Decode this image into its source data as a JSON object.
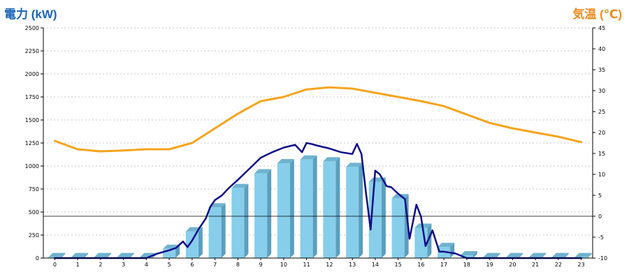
{
  "chart_data": {
    "type": "bar",
    "title": "",
    "y_left": {
      "label": "電力 (kW)",
      "ticks": [
        "0",
        "250",
        "500",
        "750",
        "1000",
        "1250",
        "1500",
        "1750",
        "2000",
        "2250",
        "2500"
      ],
      "range": [
        0,
        2500
      ]
    },
    "y_right": {
      "label": "気温 (℃)",
      "ticks": [
        "-10",
        "-5",
        "0",
        "5",
        "10",
        "15",
        "20",
        "25",
        "30",
        "35",
        "40",
        "45"
      ],
      "range": [
        -10,
        45
      ]
    },
    "categories": [
      "0",
      "1",
      "2",
      "3",
      "4",
      "5",
      "6",
      "7",
      "8",
      "9",
      "10",
      "11",
      "12",
      "13",
      "14",
      "15",
      "16",
      "17",
      "18",
      "19",
      "20",
      "21",
      "22",
      "23"
    ],
    "series": [
      {
        "name": "",
        "kind": "bar",
        "axis": "left",
        "color": "#87ceeb",
        "values": [
          10,
          10,
          10,
          10,
          10,
          100,
          290,
          550,
          760,
          920,
          1030,
          1070,
          1050,
          990,
          830,
          650,
          330,
          120,
          30,
          10,
          10,
          10,
          10,
          10
        ]
      },
      {
        "name": "",
        "kind": "line",
        "axis": "left",
        "color": "#0d0d8a",
        "x": [
          0,
          1,
          2,
          3,
          4,
          4.5,
          5,
          5.3,
          5.6,
          5.8,
          6,
          6.3,
          6.6,
          6.8,
          7,
          7.3,
          7.6,
          8,
          8.5,
          9,
          9.5,
          10,
          10.5,
          10.8,
          11,
          11.2,
          11.5,
          12,
          12.5,
          13,
          13.2,
          13.4,
          13.6,
          13.8,
          14,
          14.2,
          14.5,
          14.7,
          15,
          15.3,
          15.5,
          15.8,
          16,
          16.2,
          16.5,
          16.8,
          17,
          17.5,
          18,
          19,
          20,
          21,
          22,
          23
        ],
        "y": [
          0,
          0,
          0,
          0,
          0,
          50,
          85,
          110,
          180,
          120,
          190,
          320,
          430,
          560,
          630,
          680,
          760,
          850,
          970,
          1090,
          1150,
          1200,
          1230,
          1150,
          1250,
          1240,
          1220,
          1190,
          1150,
          1130,
          1240,
          1130,
          700,
          310,
          950,
          910,
          780,
          770,
          700,
          640,
          210,
          580,
          450,
          130,
          300,
          70,
          70,
          50,
          0,
          0,
          0,
          0,
          0,
          0
        ]
      },
      {
        "name": "",
        "kind": "line",
        "axis": "right",
        "color": "#f5a41c",
        "values": [
          18,
          16,
          15.5,
          15.7,
          16,
          16,
          17.5,
          21,
          24.5,
          27.5,
          28.5,
          30.3,
          30.8,
          30.5,
          29.5,
          28.5,
          27.5,
          26.3,
          24.3,
          22.3,
          21,
          20,
          19,
          17.7
        ]
      }
    ],
    "reference_line": {
      "axis": "right",
      "value": 0
    },
    "grid": true,
    "legend": "none"
  }
}
